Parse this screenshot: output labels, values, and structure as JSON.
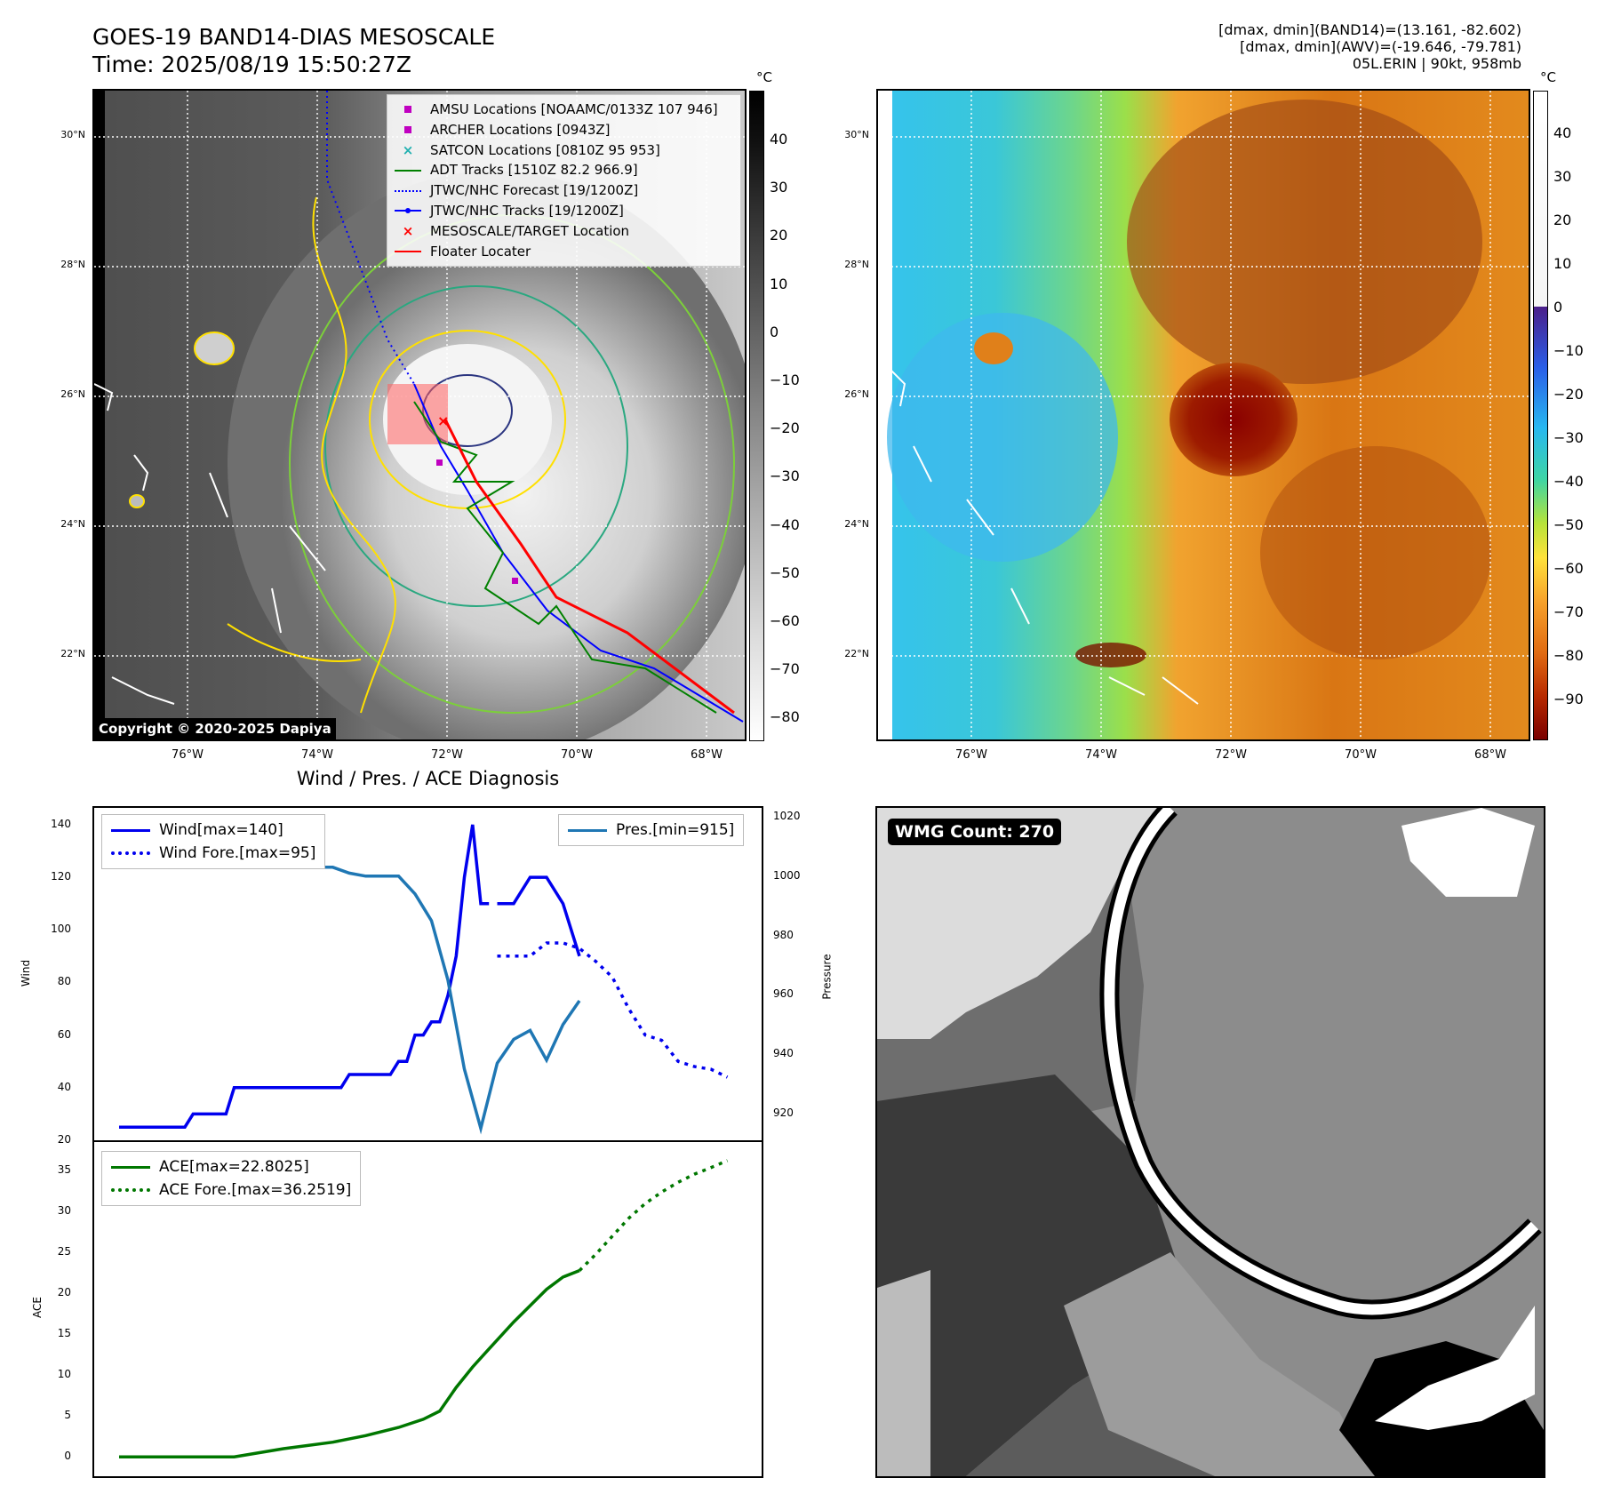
{
  "header": {
    "title_line1": "GOES-19 BAND14-DIAS MESOSCALE",
    "title_line2": "Time: 2025/08/19 15:50:27Z",
    "stats_line1": "[dmax, dmin](BAND14)=(13.161, -82.602)",
    "stats_line2": "[dmax, dmin](AWV)=(-19.646, -79.781)",
    "stats_line3": "05L.ERIN | 90kt, 958mb"
  },
  "map_axes": {
    "lat_labels": [
      "30°N",
      "28°N",
      "26°N",
      "24°N",
      "22°N"
    ],
    "lon_labels": [
      "76°W",
      "74°W",
      "72°W",
      "70°W",
      "68°W"
    ]
  },
  "ir_panel": {
    "unit": "°C",
    "colorbar_ticks": [
      "40",
      "30",
      "20",
      "10",
      "0",
      "−10",
      "−20",
      "−30",
      "−40",
      "−50",
      "−60",
      "−70",
      "−80"
    ],
    "copyright": "Copyright © 2020-2025 Dapiya",
    "legend": [
      {
        "label": "AMSU Locations [NOAAMC/0133Z 107 946]",
        "color": "#c000c0",
        "icon": "square-marker"
      },
      {
        "label": "ARCHER Locations [0943Z]",
        "color": "#c000c0",
        "icon": "square-marker"
      },
      {
        "label": "SATCON Locations [0810Z 95 953]",
        "color": "#20b0b0",
        "icon": "x-marker"
      },
      {
        "label": "ADT Tracks [1510Z 82.2 966.9]",
        "color": "#008000",
        "icon": "line"
      },
      {
        "label": "JTWC/NHC Forecast [19/1200Z]",
        "color": "#0000ff",
        "icon": "dotted-line"
      },
      {
        "label": "JTWC/NHC Tracks [19/1200Z]",
        "color": "#0000ff",
        "icon": "line-dot"
      },
      {
        "label": "MESOSCALE/TARGET Location",
        "color": "#ff0000",
        "icon": "x-marker"
      },
      {
        "label": "Floater Locater",
        "color": "#ff0000",
        "icon": "line"
      }
    ]
  },
  "awv_panel": {
    "unit": "°C",
    "colorbar_ticks": [
      "40",
      "30",
      "20",
      "10",
      "0",
      "−10",
      "−20",
      "−30",
      "−40",
      "−50",
      "−60",
      "−70",
      "−80",
      "−90"
    ]
  },
  "diagnosis": {
    "title": "Wind / Pres. / ACE Diagnosis",
    "wind_ylabel": "Wind",
    "pres_ylabel": "Pressure",
    "ace_ylabel": "ACE",
    "legend_wind": "Wind[max=140]",
    "legend_wind_fore": "Wind Fore.[max=95]",
    "legend_pres": "Pres.[min=915]",
    "legend_ace": "ACE[max=22.8025]",
    "legend_ace_fore": "ACE Fore.[max=36.2519]"
  },
  "wmg": {
    "badge": "WMG Count: 270"
  },
  "chart_data": [
    {
      "type": "line",
      "title": "Wind / Pres. / ACE Diagnosis",
      "ylabel": "Wind",
      "ylim": [
        20,
        143
      ],
      "yticks": [
        20,
        40,
        60,
        80,
        100,
        120,
        140
      ],
      "series": [
        {
          "name": "Wind[max=140]",
          "color": "#0000ee",
          "style": "solid",
          "x": [
            0,
            1,
            2,
            3,
            4,
            5,
            6,
            7,
            8,
            9,
            10,
            11,
            12,
            13,
            14,
            15,
            16,
            17,
            18,
            19,
            20,
            21,
            22,
            23,
            24,
            25,
            26,
            27,
            28,
            29,
            30,
            31,
            32,
            33,
            34,
            35,
            36,
            37,
            38,
            39,
            40,
            41,
            42,
            43,
            44,
            45
          ],
          "values": [
            25,
            25,
            25,
            25,
            25,
            25,
            25,
            25,
            25,
            30,
            30,
            30,
            30,
            30,
            40,
            40,
            40,
            40,
            40,
            40,
            40,
            40,
            40,
            40,
            40,
            40,
            40,
            40,
            45,
            45,
            45,
            45,
            45,
            45,
            50,
            50,
            60,
            60,
            65,
            65,
            75,
            90,
            120,
            140,
            110,
            110
          ]
        },
        {
          "name": "Wind Fore.[max=95]",
          "color": "#0000ee",
          "style": "dotted",
          "x": [
            46,
            48,
            50,
            52,
            54,
            56,
            58,
            60,
            62,
            64,
            66,
            68,
            70,
            72,
            74
          ],
          "values": [
            90,
            90,
            90,
            95,
            95,
            93,
            88,
            82,
            70,
            60,
            58,
            50,
            48,
            47,
            44
          ]
        }
      ],
      "series_continued": {
        "x": [
          46,
          48,
          50,
          52,
          54,
          56
        ],
        "values": [
          110,
          110,
          120,
          120,
          110,
          90
        ]
      }
    },
    {
      "type": "line",
      "ylabel": "Pressure",
      "ylim": [
        911,
        1020
      ],
      "yticks": [
        920,
        940,
        960,
        980,
        1000,
        1020
      ],
      "series": [
        {
          "name": "Pres.[min=915]",
          "color": "#1f77b4",
          "style": "solid",
          "x": [
            0,
            2,
            4,
            6,
            8,
            10,
            12,
            14,
            16,
            18,
            20,
            22,
            24,
            26,
            28,
            30,
            32,
            34,
            36,
            38,
            40,
            42,
            44,
            46,
            48,
            50,
            52,
            54,
            56
          ],
          "values": [
            1015,
            1015,
            1009,
            1007,
            1007,
            1007,
            1006,
            1005,
            1005,
            1004,
            1004,
            1003,
            1003,
            1003,
            1001,
            1000,
            1000,
            1000,
            994,
            985,
            965,
            935,
            915,
            937,
            945,
            948,
            938,
            950,
            958
          ]
        }
      ]
    },
    {
      "type": "line",
      "ylabel": "ACE",
      "ylim": [
        -1.5,
        37
      ],
      "yticks": [
        0,
        5,
        10,
        15,
        20,
        25,
        30,
        35
      ],
      "series": [
        {
          "name": "ACE[max=22.8025]",
          "color": "#007700",
          "style": "solid",
          "x": [
            0,
            14,
            20,
            26,
            30,
            34,
            37,
            39,
            41,
            43,
            45,
            48,
            52,
            54,
            56
          ],
          "values": [
            0,
            0,
            1,
            1.8,
            2.6,
            3.6,
            4.6,
            5.6,
            8.5,
            11,
            13.2,
            16.5,
            20.5,
            22,
            22.8
          ]
        },
        {
          "name": "ACE Fore.[max=36.2519]",
          "color": "#007700",
          "style": "dotted",
          "x": [
            56,
            58,
            60,
            62,
            64,
            66,
            68,
            70,
            72,
            74
          ],
          "values": [
            22.8,
            24.8,
            27,
            29.2,
            31,
            32.4,
            33.6,
            34.6,
            35.4,
            36.25
          ]
        }
      ]
    }
  ]
}
